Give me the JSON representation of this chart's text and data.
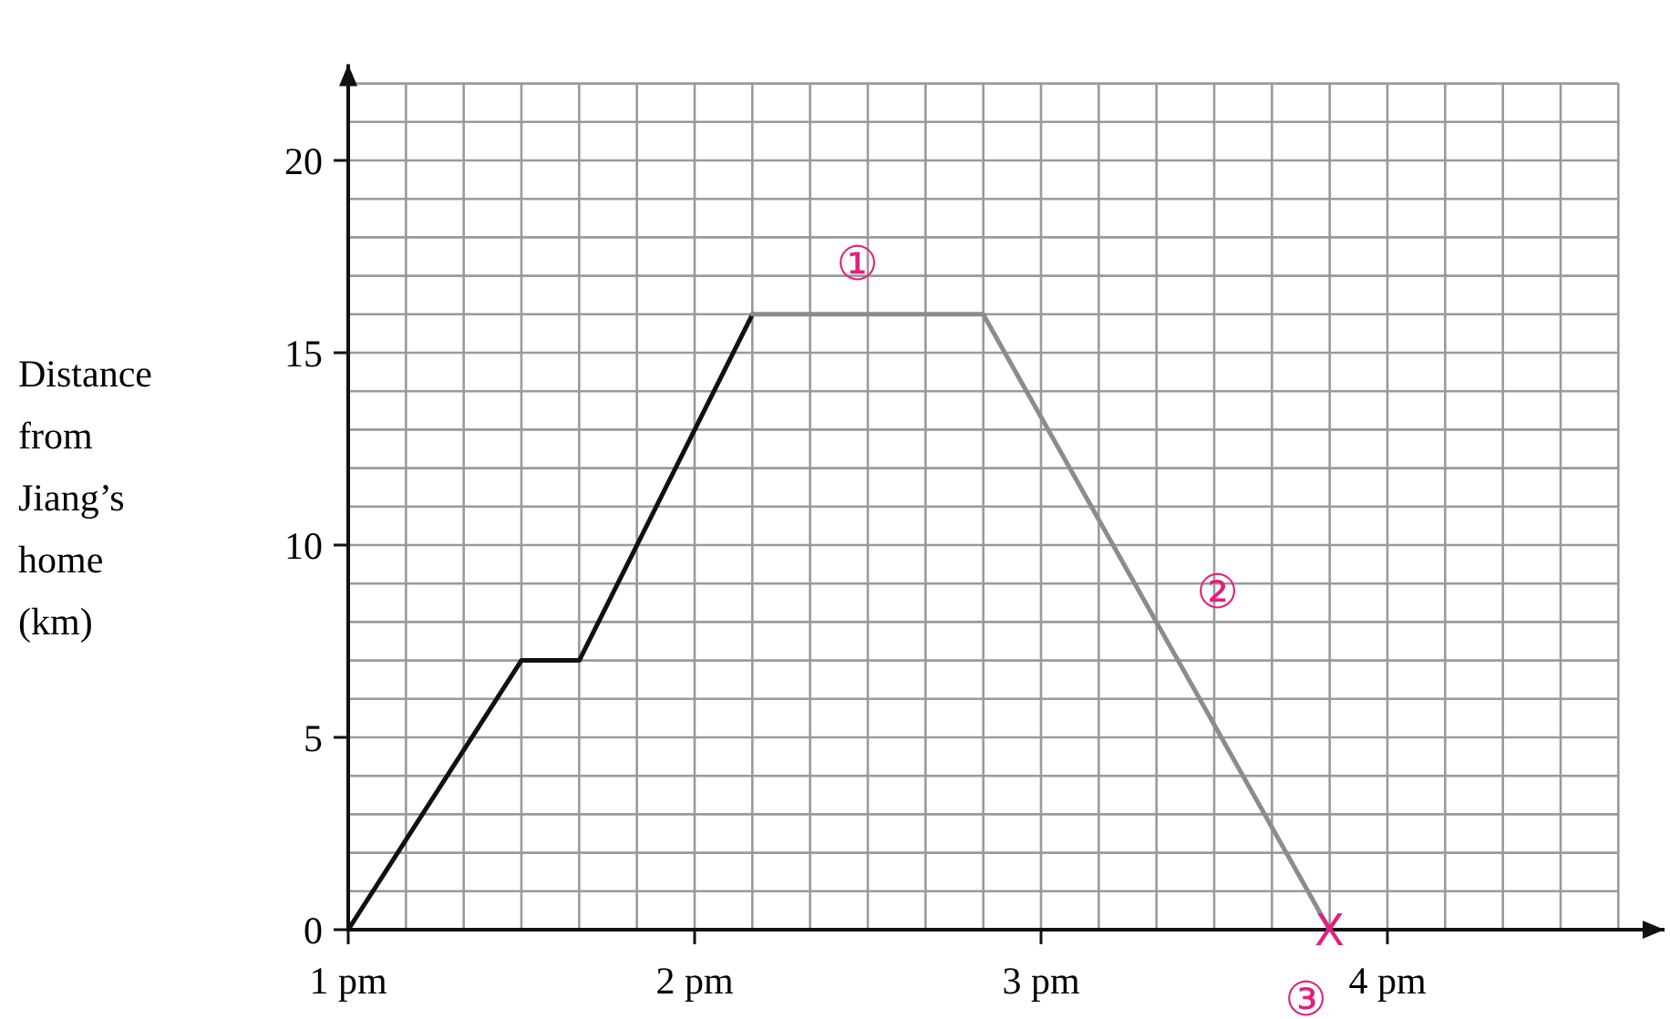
{
  "chart_data": {
    "type": "line",
    "ylabel": "Distance from Jiang’s home (km)",
    "xlim": [
      1,
      4.8
    ],
    "ylim": [
      0,
      22.5
    ],
    "xticks": [
      {
        "value": 1,
        "label": "1 pm"
      },
      {
        "value": 2,
        "label": "2 pm"
      },
      {
        "value": 3,
        "label": "3 pm"
      },
      {
        "value": 4,
        "label": "4 pm"
      }
    ],
    "yticks": [
      0,
      5,
      10,
      15,
      20
    ],
    "grid": true,
    "marker": "none",
    "line_style": "solid",
    "series": [
      {
        "color": "#111111",
        "x": [
          1,
          1.5,
          1.667,
          2.167
        ],
        "values": [
          0,
          7,
          7,
          16
        ]
      },
      {
        "color": "#8c8c8c",
        "x": [
          2.167,
          2.833,
          3.833
        ],
        "values": [
          16,
          16,
          0
        ]
      }
    ],
    "annotations": [
      {
        "text": "①",
        "x": 2.47,
        "y": 16
      },
      {
        "text": "②",
        "x": 3.283,
        "y": 8.8
      },
      {
        "text": "X",
        "x": 3.833,
        "y": 0
      },
      {
        "text": "③",
        "x": 3.833,
        "y": 0
      }
    ]
  }
}
